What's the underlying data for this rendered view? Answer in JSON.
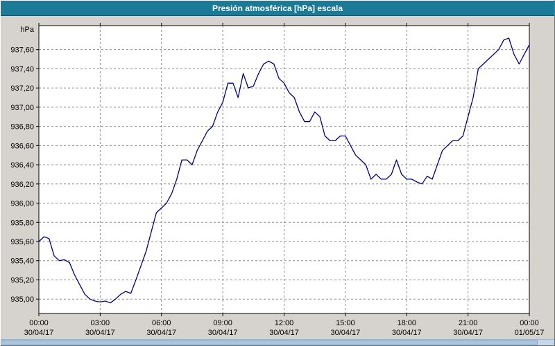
{
  "window": {
    "title": "Presión atmosférica [hPa] escala"
  },
  "colors": {
    "titlebar_bg": "#1b7a96",
    "titlebar_text": "#ffffff",
    "window_bg": "#d6d3ce",
    "plot_bg": "#ffffff",
    "grid": "#8a8a8a",
    "line": "#000080",
    "border": "#000000"
  },
  "chart_data": {
    "type": "line",
    "title": "Presión atmosférica [hPa] escala",
    "ylabel": "hPa",
    "xlabel": "",
    "grid": true,
    "legend": "none",
    "ylim": [
      934.85,
      937.85
    ],
    "y_ticks": [
      935.0,
      935.2,
      935.4,
      935.6,
      935.8,
      936.0,
      936.2,
      936.4,
      936.6,
      936.8,
      937.0,
      937.2,
      937.4,
      937.6
    ],
    "x_range_hours": [
      0,
      24
    ],
    "x_ticks": [
      {
        "time": "00:00",
        "date": "30/04/17",
        "hour": 0
      },
      {
        "time": "03:00",
        "date": "30/04/17",
        "hour": 3
      },
      {
        "time": "06:00",
        "date": "30/04/17",
        "hour": 6
      },
      {
        "time": "09:00",
        "date": "30/04/17",
        "hour": 9
      },
      {
        "time": "12:00",
        "date": "30/04/17",
        "hour": 12
      },
      {
        "time": "15:00",
        "date": "30/04/17",
        "hour": 15
      },
      {
        "time": "18:00",
        "date": "30/04/17",
        "hour": 18
      },
      {
        "time": "21:00",
        "date": "30/04/17",
        "hour": 21
      },
      {
        "time": "00:00",
        "date": "01/05/17",
        "hour": 24
      }
    ],
    "series": [
      {
        "name": "Presión atmosférica",
        "x_hours": [
          0,
          0.25,
          0.5,
          0.75,
          1,
          1.25,
          1.5,
          1.75,
          2,
          2.25,
          2.5,
          2.75,
          3,
          3.25,
          3.5,
          3.75,
          4,
          4.25,
          4.5,
          4.75,
          5,
          5.25,
          5.5,
          5.75,
          6,
          6.25,
          6.5,
          6.75,
          7,
          7.25,
          7.5,
          7.75,
          8,
          8.25,
          8.5,
          8.75,
          9,
          9.25,
          9.5,
          9.75,
          10,
          10.25,
          10.5,
          10.75,
          11,
          11.25,
          11.5,
          11.75,
          12,
          12.25,
          12.5,
          12.75,
          13,
          13.25,
          13.5,
          13.75,
          14,
          14.25,
          14.5,
          14.75,
          15,
          15.25,
          15.5,
          15.75,
          16,
          16.25,
          16.5,
          16.75,
          17,
          17.25,
          17.5,
          17.75,
          18,
          18.25,
          18.5,
          18.75,
          19,
          19.25,
          19.5,
          19.75,
          20,
          20.25,
          20.5,
          20.75,
          21,
          21.25,
          21.5,
          21.75,
          22,
          22.25,
          22.5,
          22.75,
          23,
          23.25,
          23.5,
          23.75,
          24
        ],
        "values": [
          935.6,
          935.65,
          935.63,
          935.45,
          935.4,
          935.41,
          935.38,
          935.25,
          935.15,
          935.05,
          935.0,
          934.98,
          934.97,
          934.98,
          934.96,
          935.0,
          935.05,
          935.08,
          935.06,
          935.2,
          935.35,
          935.5,
          935.7,
          935.9,
          935.95,
          936.0,
          936.1,
          936.25,
          936.45,
          936.45,
          936.4,
          936.55,
          936.65,
          936.75,
          936.8,
          936.95,
          937.05,
          937.25,
          937.25,
          937.1,
          937.35,
          937.2,
          937.22,
          937.35,
          937.45,
          937.48,
          937.45,
          937.3,
          937.25,
          937.15,
          937.1,
          936.95,
          936.85,
          936.85,
          936.95,
          936.9,
          936.7,
          936.65,
          936.65,
          936.7,
          936.7,
          936.6,
          936.5,
          936.45,
          936.4,
          936.25,
          936.3,
          936.25,
          936.25,
          936.3,
          936.45,
          936.3,
          936.25,
          936.25,
          936.22,
          936.2,
          936.28,
          936.25,
          936.4,
          936.55,
          936.6,
          936.65,
          936.65,
          936.7,
          936.9,
          937.1,
          937.4,
          937.45,
          937.5,
          937.55,
          937.6,
          937.7,
          937.72,
          937.55,
          937.45,
          937.55,
          937.65
        ]
      }
    ]
  }
}
